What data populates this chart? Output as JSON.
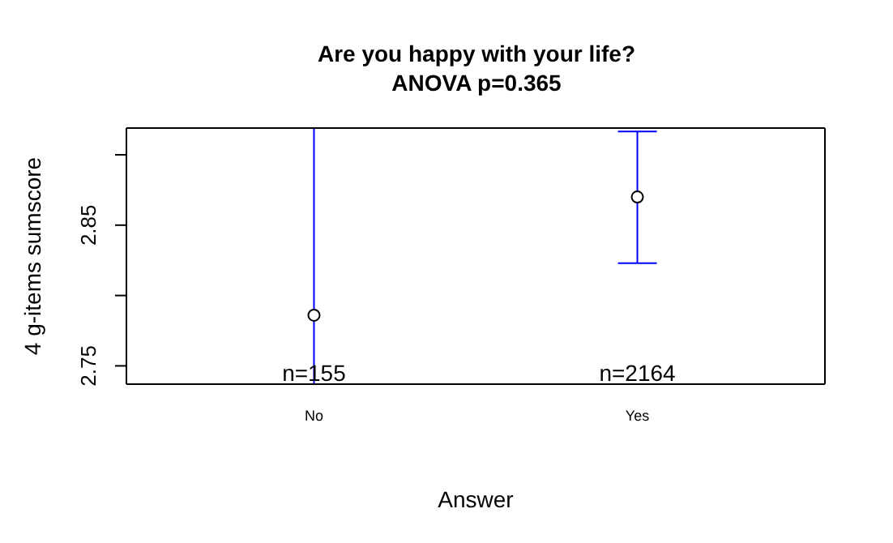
{
  "chart_data": {
    "type": "scatter",
    "title": "Are you happy with your life?",
    "subtitle": "ANOVA p=0.365",
    "xlabel": "Answer",
    "ylabel": "4 g-items sumscore",
    "categories": [
      "No",
      "Yes"
    ],
    "values": [
      2.786,
      2.87
    ],
    "errors": [
      [
        2.737,
        2.919
      ],
      [
        2.823,
        2.9165
      ]
    ],
    "color": "#000000",
    "marker": "circle",
    "ylim": [
      2.737,
      2.919
    ],
    "yticks": [
      2.75,
      {
        "value": 2.8,
        "label": null
      },
      2.85,
      {
        "value": 2.9,
        "label": null
      }
    ],
    "annotations": [
      "n=155",
      "n=2164"
    ]
  }
}
